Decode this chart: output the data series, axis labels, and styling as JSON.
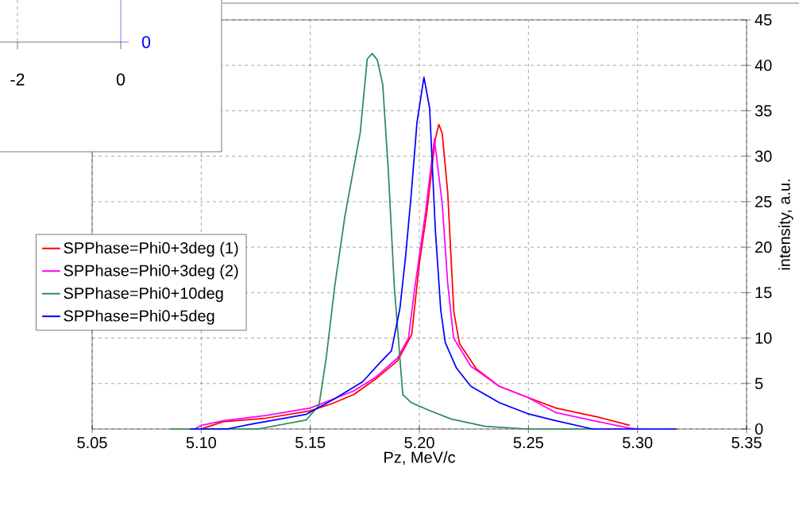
{
  "chart_data": [
    {
      "type": "line",
      "xlabel": "Pz, MeV/c",
      "ylabel": "intensity, a.u.",
      "xlim": [
        5.05,
        5.35
      ],
      "ylim": [
        0,
        45
      ],
      "xticks": [
        {
          "value": 5.05,
          "label": "5.05"
        },
        {
          "value": 5.1,
          "label": "5.10"
        },
        {
          "value": 5.15,
          "label": "5.15"
        },
        {
          "value": 5.2,
          "label": "5.20"
        },
        {
          "value": 5.25,
          "label": "5.25"
        },
        {
          "value": 5.3,
          "label": "5.30"
        },
        {
          "value": 5.35,
          "label": "5.35"
        }
      ],
      "yticks": [
        0,
        5,
        10,
        15,
        20,
        25,
        30,
        35,
        40,
        45
      ],
      "grid": true,
      "legend": "left",
      "marker": "none",
      "line_style": "solid",
      "series": [
        {
          "name": "SPPhase=Phi0+3deg (1)",
          "color": "#ff0000",
          "x": [
            5.1,
            5.11,
            5.13,
            5.15,
            5.16,
            5.17,
            5.18,
            5.19,
            5.1965,
            5.2,
            5.2034,
            5.2073,
            5.2089,
            5.2105,
            5.213,
            5.2158,
            5.2184,
            5.2262,
            5.2366,
            5.2495,
            5.2626,
            5.2821,
            5.2964
          ],
          "values": [
            0,
            0.8,
            1.2,
            2.0,
            2.8,
            3.8,
            5.5,
            7.5,
            10.4,
            18.2,
            23.8,
            31.9,
            33.5,
            32.5,
            26,
            12.9,
            9.4,
            6.6,
            4.7,
            3.5,
            2.3,
            1.3,
            0.4
          ]
        },
        {
          "name": "SPPhase=Phi0+3deg (2)",
          "color": "#ff00ff",
          "x": [
            5.097,
            5.1,
            5.11,
            5.13,
            5.15,
            5.17,
            5.18,
            5.19,
            5.195,
            5.198,
            5.2028,
            5.2069,
            5.2105,
            5.213,
            5.2157,
            5.2236,
            5.2366,
            5.2495,
            5.2626,
            5.2821,
            5.2964,
            5.3
          ],
          "values": [
            0,
            0.4,
            0.9,
            1.5,
            2.3,
            4.2,
            5.7,
            7.8,
            10,
            15.7,
            23.8,
            31.9,
            24.7,
            16,
            10,
            6.9,
            4.7,
            3.5,
            1.8,
            0.8,
            0.1,
            0
          ]
        },
        {
          "name": "SPPhase=Phi0+10deg",
          "color": "#2e8b57",
          "x": [
            5.086,
            5.126,
            5.1482,
            5.154,
            5.1573,
            5.1612,
            5.1658,
            5.1683,
            5.1729,
            5.1761,
            5.1784,
            5.1807,
            5.1832,
            5.1858,
            5.1885,
            5.1924,
            5.1963,
            5.204,
            5.2145,
            5.2301,
            5.2495,
            5.28
          ],
          "values": [
            0,
            0,
            1.0,
            2.6,
            7.8,
            15.7,
            23.3,
            26.6,
            32.6,
            40.7,
            41.3,
            40.6,
            37.9,
            28.3,
            15.7,
            3.8,
            2.9,
            2.1,
            1.1,
            0.3,
            0,
            0
          ]
        },
        {
          "name": "SPPhase=Phi0+5deg",
          "color": "#0000ff",
          "x": [
            5.095,
            5.1118,
            5.122,
            5.148,
            5.161,
            5.174,
            5.182,
            5.1872,
            5.1911,
            5.1937,
            5.1963,
            5.1989,
            5.2021,
            5.2047,
            5.2073,
            5.2098,
            5.2119,
            5.217,
            5.2236,
            5.2366,
            5.2495,
            5.2626,
            5.2794,
            5.318
          ],
          "values": [
            0,
            0,
            0.5,
            1.6,
            3.3,
            5.2,
            7.3,
            8.6,
            13.3,
            19,
            25.9,
            33.7,
            38.7,
            35.3,
            22,
            13.1,
            9.5,
            6.7,
            4.7,
            2.9,
            1.7,
            0.9,
            0,
            0
          ]
        }
      ]
    },
    {
      "type": "other",
      "annotations": [
        "-2",
        "0",
        "0"
      ]
    }
  ]
}
